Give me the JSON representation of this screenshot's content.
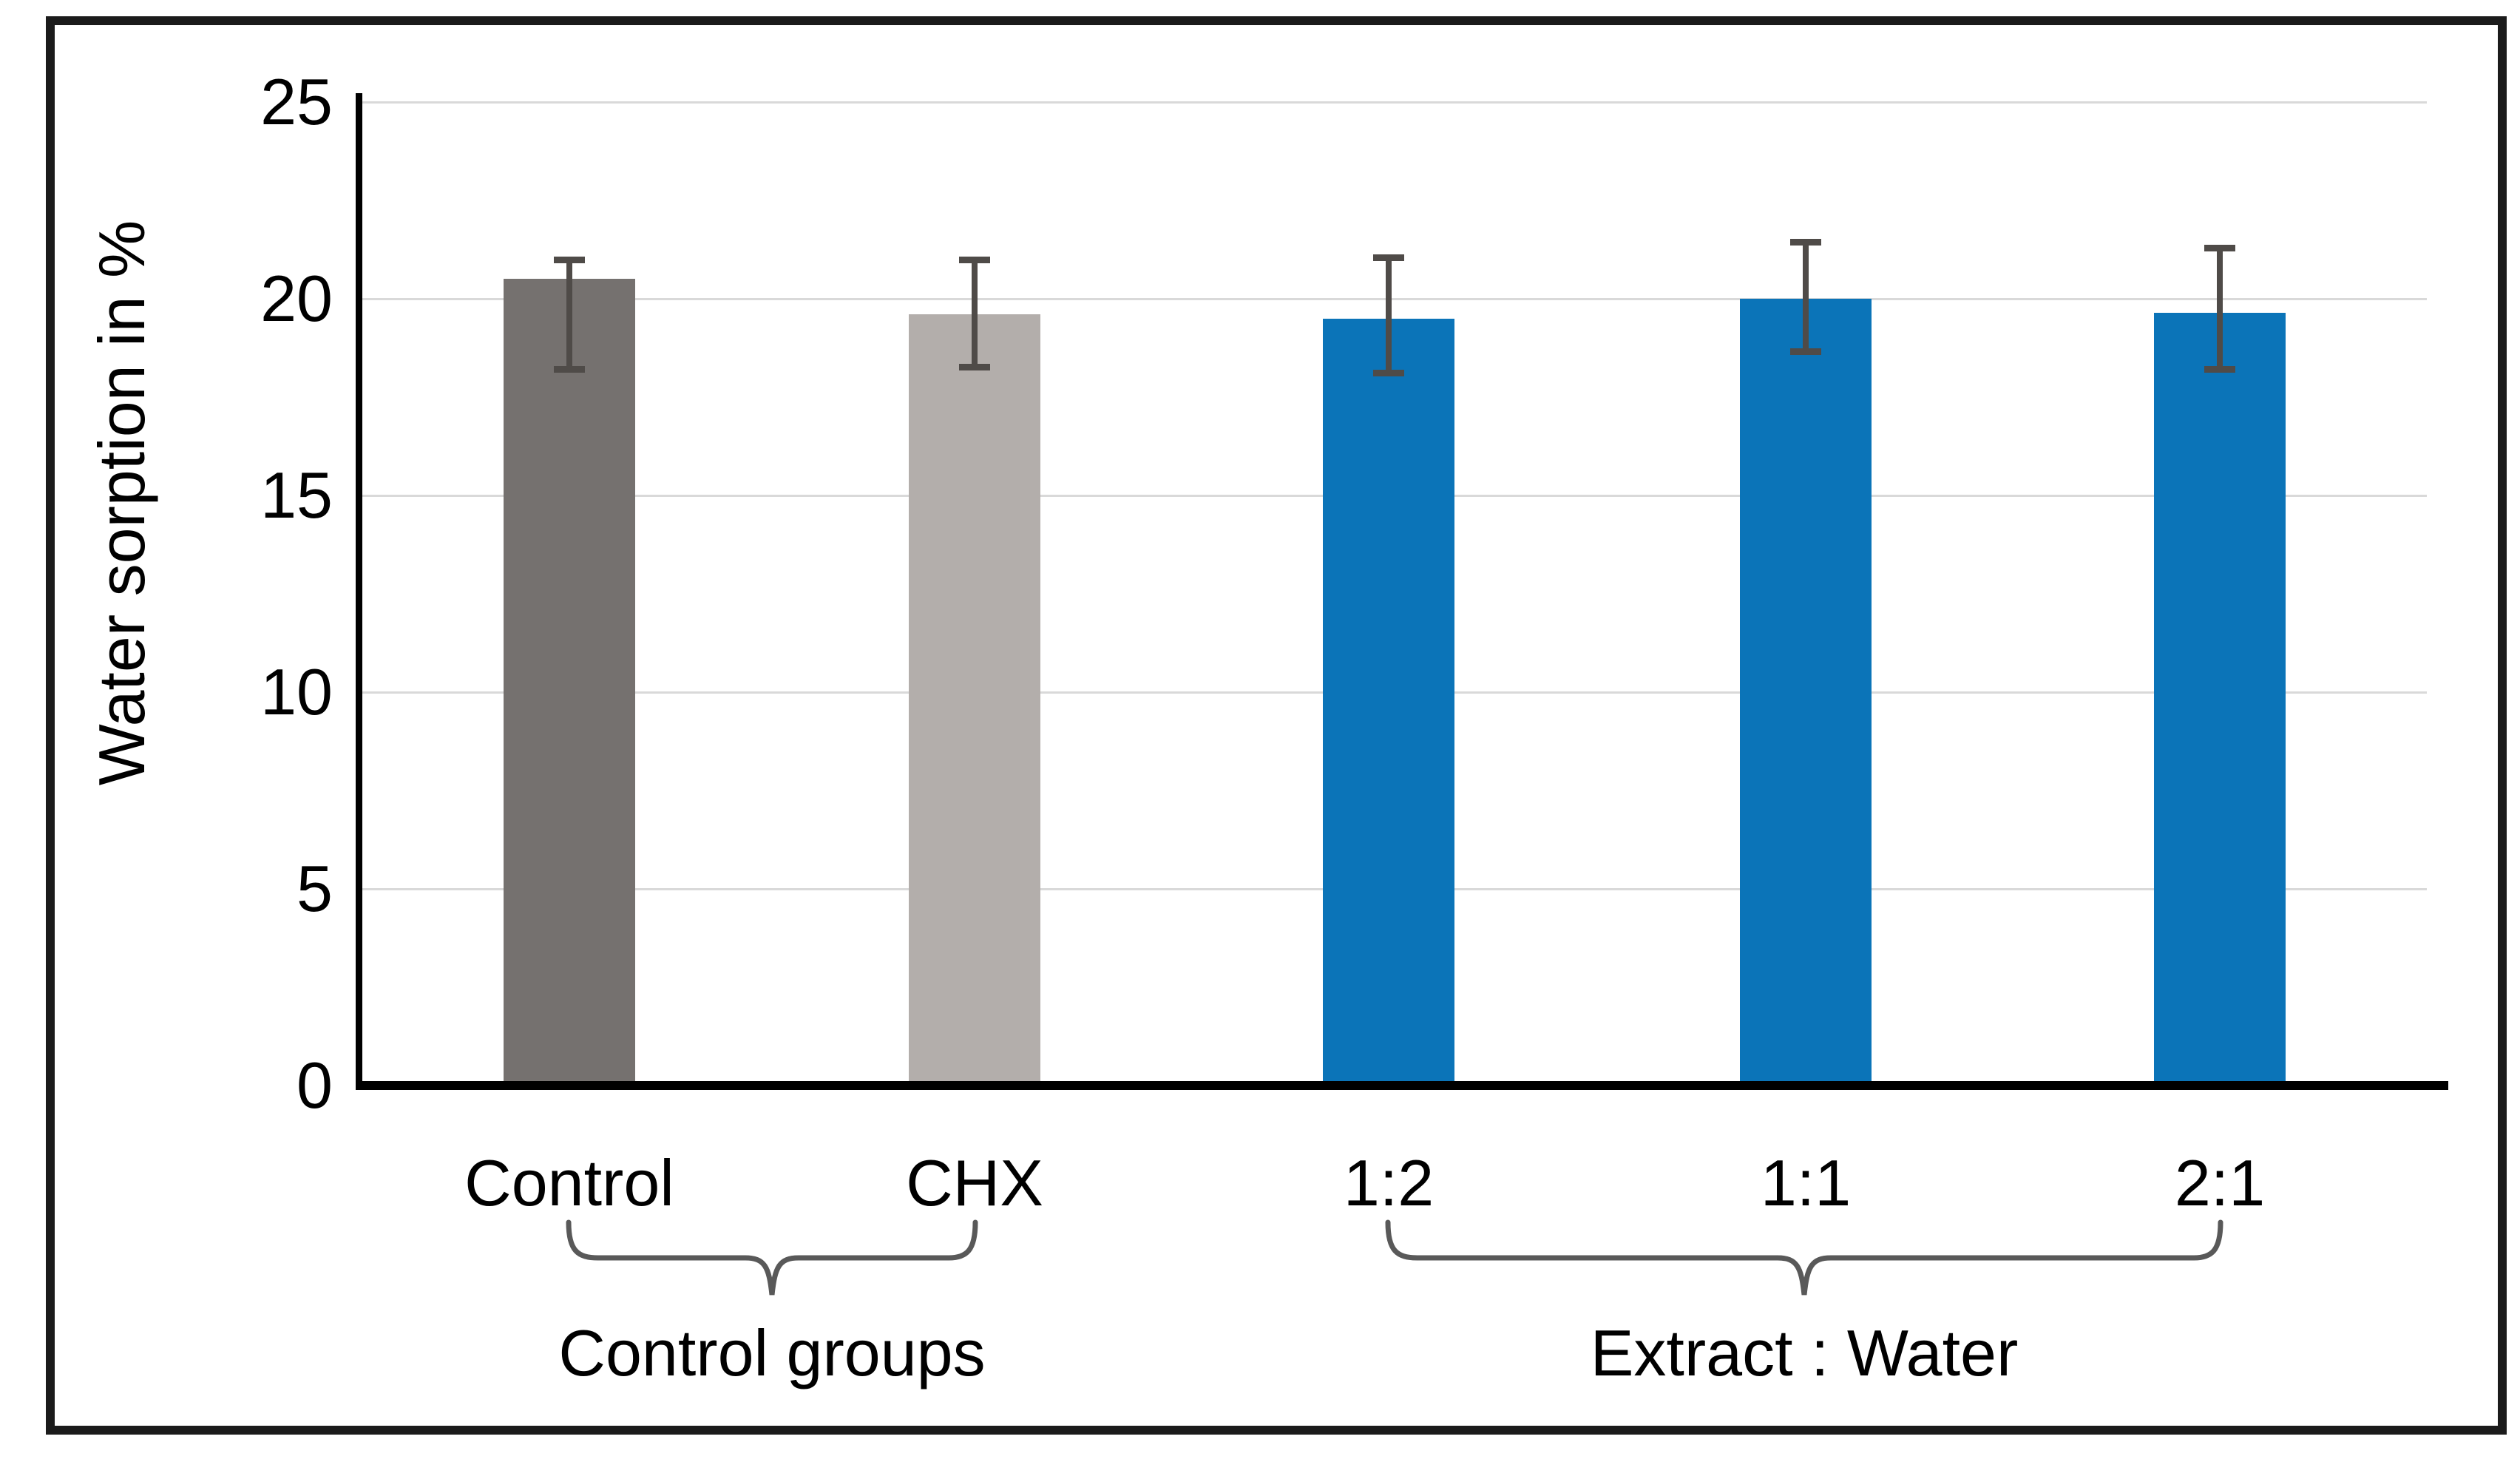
{
  "figure": {
    "background": "#ffffff",
    "border_color": "#1b1b1b"
  },
  "chart_data": {
    "type": "bar",
    "title": "",
    "ylabel": "Water sorption in %",
    "xlabel": "",
    "ylim": [
      0,
      25
    ],
    "yticks": [
      0,
      5,
      10,
      15,
      20,
      25
    ],
    "grid": true,
    "legend_position": "none",
    "categories": [
      "Control",
      "CHX",
      "1:2",
      "1:1",
      "2:1"
    ],
    "values": [
      20.5,
      19.6,
      19.5,
      20.0,
      19.65
    ],
    "bar_colors": [
      "#75716f",
      "#b3aeab",
      "#0b74b8",
      "#0b74b8",
      "#0b74b8"
    ],
    "error_bars": {
      "low": [
        18.2,
        18.25,
        18.1,
        18.65,
        18.2
      ],
      "high": [
        21.0,
        21.0,
        21.05,
        21.45,
        21.3
      ]
    },
    "group_annotations": [
      {
        "label": "Control groups",
        "from": "Control",
        "to": "CHX"
      },
      {
        "label": "Extract : Water",
        "from": "1:2",
        "to": "2:1"
      }
    ],
    "colors": {
      "gridline": "#d9d9d9",
      "axis": "#000000",
      "error_bar": "#4f4b48",
      "brace": "#595959",
      "text": "#000000"
    }
  }
}
